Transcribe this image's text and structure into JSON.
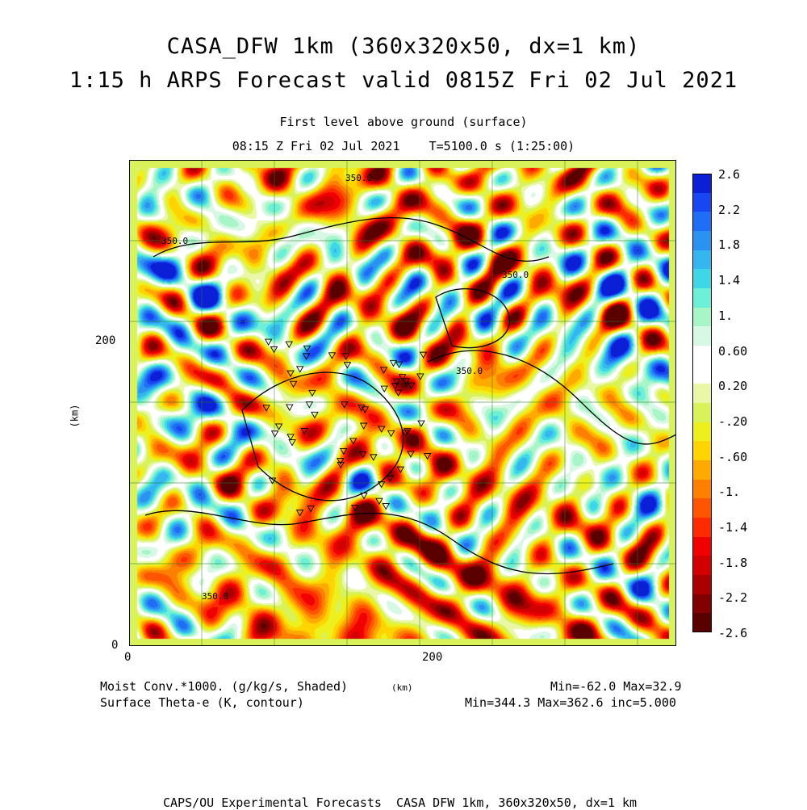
{
  "header": {
    "title_line1": "CASA_DFW 1km (360x320x50, dx=1 km)",
    "title_line2": "1:15 h ARPS Forecast valid 0815Z Fri 02 Jul 2021",
    "level": "First level above ground (surface)",
    "time": "08:15 Z Fri 02 Jul 2021    T=5100.0 s (1:25:00)"
  },
  "axes": {
    "y_label": "(km)",
    "x_label": "(km)",
    "y_ticks": [
      "200",
      "0"
    ],
    "x_ticks": [
      "0",
      "200"
    ]
  },
  "contour_labels": [
    "350.0",
    "350.0",
    "350.0",
    "350.0",
    "350.0"
  ],
  "colorbar": {
    "labels": [
      "2.6",
      "2.2",
      "1.8",
      "1.4",
      "1.",
      "0.60",
      "0.20",
      "-.20",
      "-.60",
      "-1.",
      "-1.4",
      "-1.8",
      "-2.2",
      "-2.6"
    ],
    "colors": [
      "#0a1fd6",
      "#1846f0",
      "#1f6ef5",
      "#2b92f2",
      "#35b6ee",
      "#3fd7e8",
      "#6ef0d8",
      "#a8f5c8",
      "#d8f8e6",
      "#ffffff",
      "#ffffff",
      "#eaf7a6",
      "#d9f25a",
      "#eef01e",
      "#ffd400",
      "#ffaa00",
      "#ff8000",
      "#ff5500",
      "#ff2a00",
      "#f00000",
      "#d20000",
      "#aa0000",
      "#820000",
      "#5a0000"
    ]
  },
  "footer": {
    "field1": "Moist Conv.*1000. (g/kg/s, Shaded)",
    "units": "(km)",
    "minmax1": "Min=-62.0 Max=32.9",
    "field2": "Surface Theta-e (K, contour)",
    "minmax2": "Min=344.3 Max=362.6 inc=5.000",
    "credit": "CAPS/OU Experimental Forecasts  CASA DFW 1km, 360x320x50, dx=1 km"
  }
}
